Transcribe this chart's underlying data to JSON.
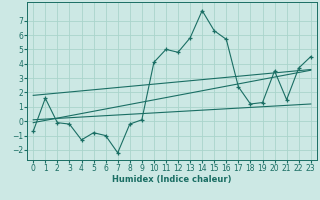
{
  "xlabel": "Humidex (Indice chaleur)",
  "ylabel": "",
  "bg_color": "#cce8e4",
  "grid_color": "#aad4cc",
  "line_color": "#1a6e64",
  "xlim": [
    -0.5,
    23.5
  ],
  "ylim": [
    -2.7,
    8.3
  ],
  "xticks": [
    0,
    1,
    2,
    3,
    4,
    5,
    6,
    7,
    8,
    9,
    10,
    11,
    12,
    13,
    14,
    15,
    16,
    17,
    18,
    19,
    20,
    21,
    22,
    23
  ],
  "yticks": [
    -2,
    -1,
    0,
    1,
    2,
    3,
    4,
    5,
    6,
    7
  ],
  "main_x": [
    0,
    1,
    2,
    3,
    4,
    5,
    6,
    7,
    8,
    9,
    10,
    11,
    12,
    13,
    14,
    15,
    16,
    17,
    18,
    19,
    20,
    21,
    22,
    23
  ],
  "main_y": [
    -0.7,
    1.6,
    -0.1,
    -0.2,
    -1.3,
    -0.8,
    -1.0,
    -2.2,
    -0.2,
    0.1,
    4.1,
    5.0,
    4.8,
    5.8,
    7.7,
    6.3,
    5.7,
    2.4,
    1.2,
    1.3,
    3.5,
    1.5,
    3.7,
    4.5
  ],
  "trend1_x": [
    0,
    23
  ],
  "trend1_y": [
    1.8,
    3.6
  ],
  "trend2_x": [
    0,
    23
  ],
  "trend2_y": [
    -0.1,
    3.55
  ],
  "trend3_x": [
    0,
    23
  ],
  "trend3_y": [
    0.1,
    1.2
  ],
  "tick_fontsize": 5.5,
  "xlabel_fontsize": 6.0
}
